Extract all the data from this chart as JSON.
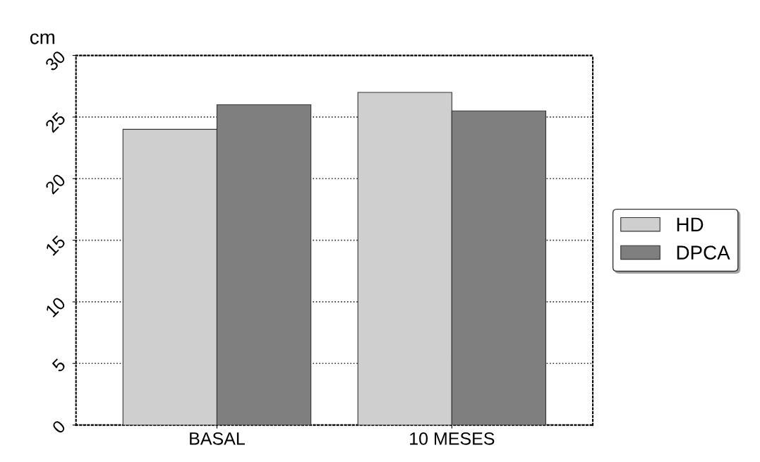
{
  "chart_data": {
    "type": "bar",
    "ylabel": "cm",
    "categories": [
      "BASAL",
      "10 MESES"
    ],
    "series": [
      {
        "name": "HD",
        "color": "#cfcfcf",
        "values": [
          24,
          27
        ]
      },
      {
        "name": "DPCA",
        "color": "#7f7f7f",
        "values": [
          26,
          25.5
        ]
      }
    ],
    "ylim": [
      0,
      30
    ],
    "yticks": [
      0,
      5,
      10,
      15,
      20,
      25,
      30
    ],
    "grid": "y",
    "legend": "right"
  }
}
